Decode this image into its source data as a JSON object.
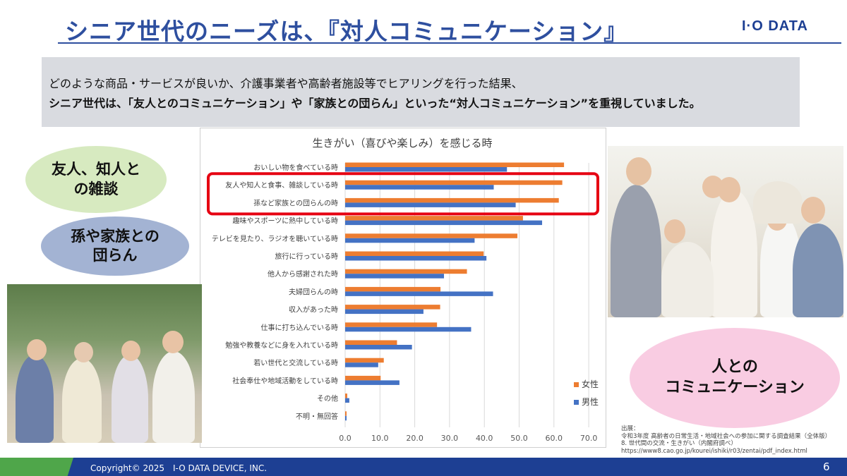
{
  "slide": {
    "title": "シニア世代のニーズは、『対人コミュニケーション』",
    "logo": "I·O DATA",
    "summary_line1": "どのような商品・サービスが良いか、介護事業者や高齢者施設等でヒアリングを行った結果、",
    "summary_line2": "シニア世代は、「友人とのコミュニケーション」や「家族との団らん」といった“対人コミュニケーション”を重視していました。",
    "bubble_friends": "友人、知人と\nの雑談",
    "bubble_family": "孫や家族との\n団らん",
    "bubble_people": "人との\nコミュニケーション",
    "source_lines": [
      "出展：",
      "令和3年度 高齢者の日常生活・地域社会への参加に関する調査結果（全体版）",
      "8. 世代間の交流・生きがい（内閣府調べ）",
      "https://www8.cao.go.jp/kourei/ishiki/r03/zentai/pdf_index.html"
    ],
    "copyright": "Copyright© 2025　I-O DATA DEVICE, INC.",
    "page_number": "6"
  },
  "colors": {
    "title_blue": "#2e4f9f",
    "female": "#ed7d31",
    "male": "#4472c4",
    "highlight": "#e60012"
  },
  "chart_data": {
    "type": "bar",
    "orientation": "horizontal",
    "title": "生きがい（喜びや楽しみ）を感じる時",
    "categories": [
      "おいしい物を食べている時",
      "友人や知人と食事、雑談している時",
      "孫など家族との団らんの時",
      "趣味やスポーツに熱中している時",
      "テレビを見たり、ラジオを聴いている時",
      "旅行に行っている時",
      "他人から感謝された時",
      "夫婦団らんの時",
      "収入があった時",
      "仕事に打ち込んでいる時",
      "勉強や教養などに身を入れている時",
      "若い世代と交流している時",
      "社会奉仕や地域活動をしている時",
      "その他",
      "不明・無回答"
    ],
    "series": [
      {
        "name": "女性",
        "color": "#ed7d31",
        "values": [
          62.9,
          62.4,
          61.4,
          51.1,
          49.5,
          39.8,
          35.0,
          27.4,
          27.3,
          26.4,
          14.9,
          11.1,
          10.2,
          0.6,
          0.4
        ]
      },
      {
        "name": "男性",
        "color": "#4472c4",
        "values": [
          46.5,
          42.7,
          49.0,
          56.6,
          37.2,
          40.6,
          28.4,
          42.5,
          22.5,
          36.2,
          19.2,
          9.5,
          15.6,
          1.2,
          0.4
        ]
      }
    ],
    "xlim": [
      0,
      70
    ],
    "xticks": [
      "0.0",
      "10.0",
      "20.0",
      "30.0",
      "40.0",
      "50.0",
      "60.0",
      "70.0"
    ],
    "grid": true,
    "legend_position": "bottom-right",
    "highlighted_categories": [
      "友人や知人と食事、雑談している時",
      "孫など家族との団らんの時"
    ]
  }
}
